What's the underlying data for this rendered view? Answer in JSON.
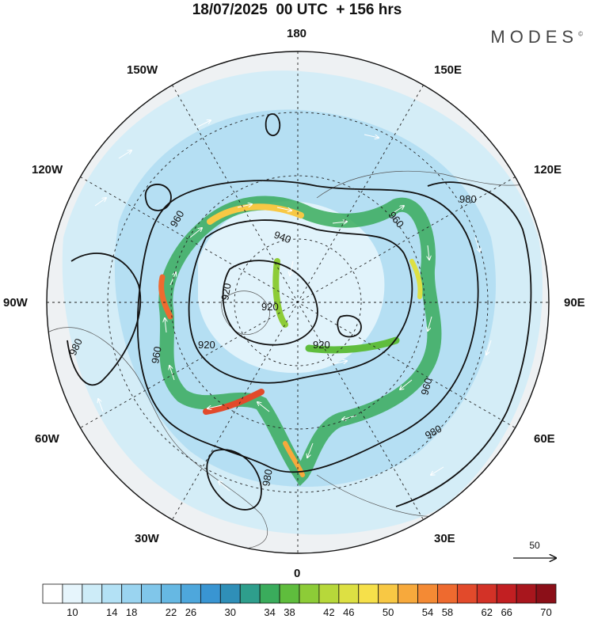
{
  "title": "18/07/2025  00 UTC  + 156 hrs",
  "brand": "MODES",
  "brand_mark": "©",
  "longitude_labels": {
    "top": "180",
    "bottom": "0",
    "left": "90W",
    "right": "90E",
    "upper_left_1": "150W",
    "upper_left_2": "120W",
    "upper_right_1": "150E",
    "upper_right_2": "120E",
    "lower_left_1": "60W",
    "lower_left_2": "30W",
    "lower_right_1": "60E",
    "lower_right_2": "30E"
  },
  "contour_labels": [
    "960",
    "940",
    "920",
    "920",
    "920",
    "920",
    "960",
    "960",
    "960",
    "980",
    "980",
    "980",
    "980"
  ],
  "reference_vector": "50",
  "colorbar": {
    "ticks": [
      "10",
      "14",
      "18",
      "22",
      "26",
      "30",
      "34",
      "38",
      "42",
      "46",
      "50",
      "54",
      "58",
      "62",
      "66",
      "70"
    ],
    "colors": [
      "#ffffff",
      "#e6f5fc",
      "#cdecf8",
      "#b3e1f5",
      "#9ad4f0",
      "#80c6ea",
      "#66b8e3",
      "#4ea7dc",
      "#3995d2",
      "#2f8fb8",
      "#2e9e8c",
      "#3aac5c",
      "#5fbd3d",
      "#8dcc37",
      "#b7d83a",
      "#dde043",
      "#f6e04a",
      "#f8c844",
      "#f7a93c",
      "#f48a34",
      "#ee6a2f",
      "#e24a2b",
      "#d33227",
      "#c21f22",
      "#a8161d",
      "#8b0f18"
    ]
  }
}
